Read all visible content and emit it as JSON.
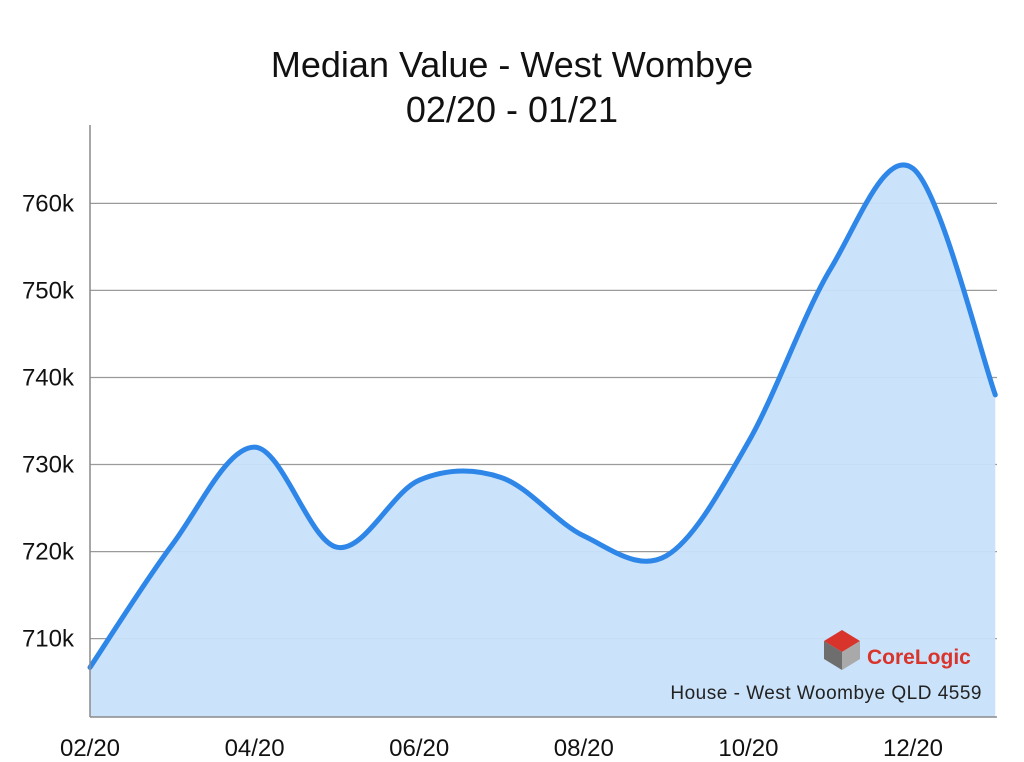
{
  "chart_data": {
    "type": "area",
    "title": "Median Value - West Wombye",
    "subtitle": "02/20 - 01/21",
    "xlabel": "",
    "ylabel": "",
    "x": [
      "02/20",
      "03/20",
      "04/20",
      "05/20",
      "06/20",
      "07/20",
      "08/20",
      "09/20",
      "10/20",
      "11/20",
      "12/20",
      "01/21"
    ],
    "x_tick_labels": [
      "02/20",
      "04/20",
      "06/20",
      "08/20",
      "10/20",
      "12/20"
    ],
    "series": [
      {
        "values": [
          706700,
          720800,
          732000,
          720500,
          728200,
          728500,
          721800,
          719500,
          732600,
          752500,
          764000,
          738000
        ]
      }
    ],
    "y_tick_values": [
      710000,
      720000,
      730000,
      740000,
      750000,
      760000
    ],
    "y_tick_labels": [
      "710k",
      "720k",
      "730k",
      "740k",
      "750k",
      "760k"
    ],
    "ylim": [
      701000,
      769000
    ],
    "grid": "horizontal",
    "legend": "none",
    "line_color": "#2d86e8",
    "fill_color": "#c7e0fa"
  },
  "watermark": {
    "brand": "CoreLogic",
    "brand_color": "#d9342b",
    "caption": "House - West Woombye QLD 4559"
  }
}
